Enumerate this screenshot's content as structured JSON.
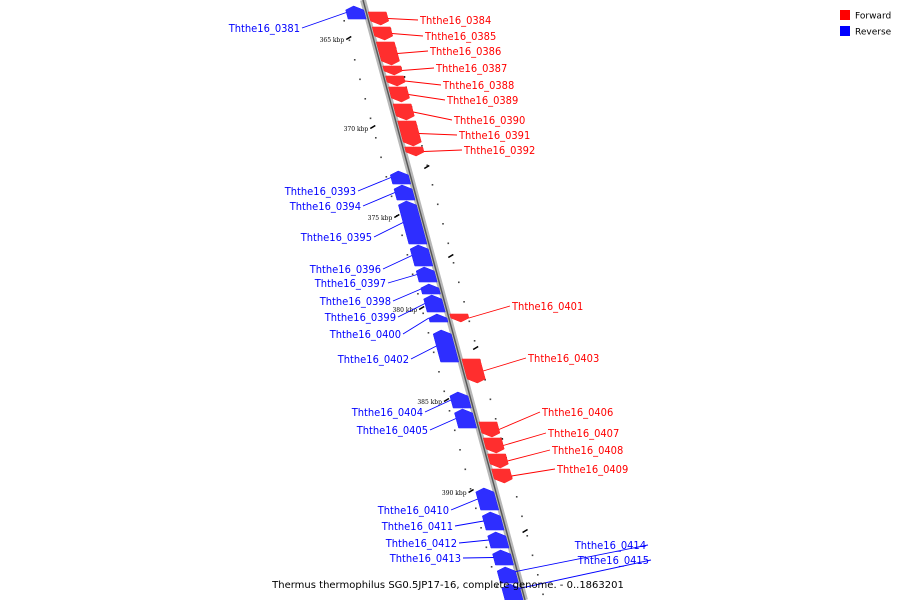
{
  "legend": {
    "forward": {
      "label": "Forward",
      "color": "#ff0000"
    },
    "reverse": {
      "label": "Reverse",
      "color": "#0000ff"
    }
  },
  "caption": "Thermus thermophilus SG0.5JP17-16, complete genome. - 0..1863201",
  "ticks": [
    "365 kbp",
    "370 kbp",
    "375 kbp",
    "380 kbp",
    "385 kbp",
    "390 kbp"
  ],
  "genes": [
    {
      "name": "Ththe16_0381",
      "strand": "reverse"
    },
    {
      "name": "Ththe16_0384",
      "strand": "forward"
    },
    {
      "name": "Ththe16_0385",
      "strand": "forward"
    },
    {
      "name": "Ththe16_0386",
      "strand": "forward"
    },
    {
      "name": "Ththe16_0387",
      "strand": "forward"
    },
    {
      "name": "Ththe16_0388",
      "strand": "forward"
    },
    {
      "name": "Ththe16_0389",
      "strand": "forward"
    },
    {
      "name": "Ththe16_0390",
      "strand": "forward"
    },
    {
      "name": "Ththe16_0391",
      "strand": "forward"
    },
    {
      "name": "Ththe16_0392",
      "strand": "forward"
    },
    {
      "name": "Ththe16_0393",
      "strand": "reverse"
    },
    {
      "name": "Ththe16_0394",
      "strand": "reverse"
    },
    {
      "name": "Ththe16_0395",
      "strand": "reverse"
    },
    {
      "name": "Ththe16_0396",
      "strand": "reverse"
    },
    {
      "name": "Ththe16_0397",
      "strand": "reverse"
    },
    {
      "name": "Ththe16_0398",
      "strand": "reverse"
    },
    {
      "name": "Ththe16_0399",
      "strand": "reverse"
    },
    {
      "name": "Ththe16_0400",
      "strand": "reverse"
    },
    {
      "name": "Ththe16_0401",
      "strand": "forward"
    },
    {
      "name": "Ththe16_0402",
      "strand": "reverse"
    },
    {
      "name": "Ththe16_0403",
      "strand": "forward"
    },
    {
      "name": "Ththe16_0404",
      "strand": "reverse"
    },
    {
      "name": "Ththe16_0405",
      "strand": "reverse"
    },
    {
      "name": "Ththe16_0406",
      "strand": "forward"
    },
    {
      "name": "Ththe16_0407",
      "strand": "forward"
    },
    {
      "name": "Ththe16_0408",
      "strand": "forward"
    },
    {
      "name": "Ththe16_0409",
      "strand": "forward"
    },
    {
      "name": "Ththe16_0410",
      "strand": "reverse"
    },
    {
      "name": "Ththe16_0411",
      "strand": "reverse"
    },
    {
      "name": "Ththe16_0412",
      "strand": "reverse"
    },
    {
      "name": "Ththe16_0413",
      "strand": "reverse"
    },
    {
      "name": "Ththe16_0414",
      "strand": "reverse"
    },
    {
      "name": "Ththe16_0415",
      "strand": "reverse"
    }
  ]
}
